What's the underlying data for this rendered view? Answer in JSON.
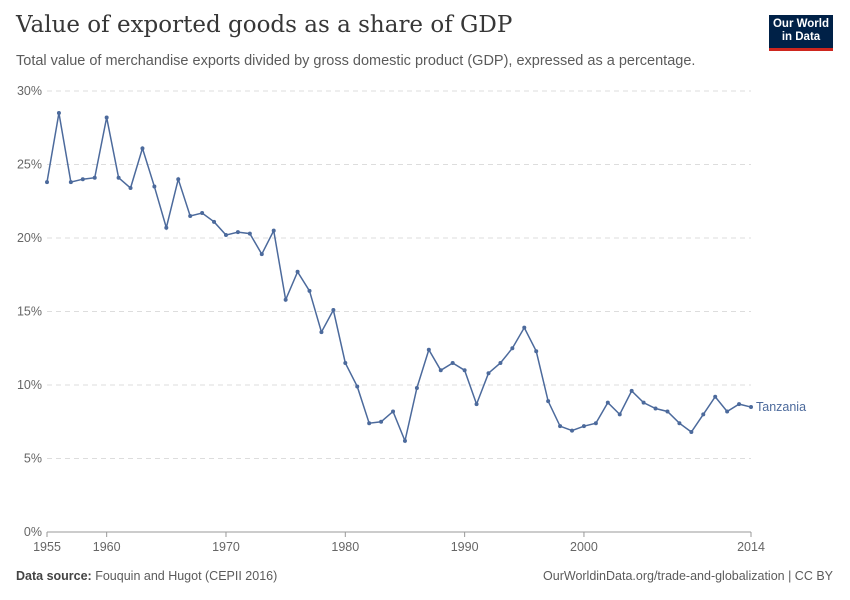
{
  "header": {
    "title": "Value of exported goods as a share of GDP",
    "subtitle": "Total value of merchandise exports divided by gross domestic product (GDP), expressed as a percentage.",
    "logo": "Our World in Data"
  },
  "footer": {
    "source_label": "Data source:",
    "source": "Fouquin and Hugot (CEPII 2016)",
    "url": "OurWorldinData.org/trade-and-globalization | CC BY"
  },
  "chart_data": {
    "type": "line",
    "title": "Value of exported goods as a share of GDP",
    "xlabel": "",
    "ylabel": "",
    "xlim": [
      1955,
      2014
    ],
    "ylim": [
      0,
      30
    ],
    "x_ticks": [
      "1955",
      "1960",
      "1970",
      "1980",
      "1990",
      "2000",
      "2014"
    ],
    "y_ticks": [
      "0%",
      "5%",
      "10%",
      "15%",
      "20%",
      "25%",
      "30%"
    ],
    "grid": true,
    "color": "#4c6a9c",
    "series": [
      {
        "name": "Tanzania",
        "x": [
          1955,
          1956,
          1957,
          1958,
          1959,
          1960,
          1961,
          1962,
          1963,
          1964,
          1965,
          1966,
          1967,
          1968,
          1969,
          1970,
          1971,
          1972,
          1973,
          1974,
          1975,
          1976,
          1977,
          1978,
          1979,
          1980,
          1981,
          1982,
          1983,
          1984,
          1985,
          1986,
          1987,
          1988,
          1989,
          1990,
          1991,
          1992,
          1993,
          1994,
          1995,
          1996,
          1997,
          1998,
          1999,
          2000,
          2001,
          2002,
          2003,
          2004,
          2005,
          2006,
          2007,
          2008,
          2009,
          2010,
          2011,
          2012,
          2013,
          2014
        ],
        "values": [
          23.8,
          28.5,
          23.8,
          24.0,
          24.1,
          28.2,
          24.1,
          23.4,
          26.1,
          23.5,
          20.7,
          24.0,
          21.5,
          21.7,
          21.1,
          20.2,
          20.4,
          20.3,
          18.9,
          20.5,
          15.8,
          17.7,
          16.4,
          13.6,
          15.1,
          11.5,
          9.9,
          7.4,
          7.5,
          8.2,
          6.2,
          9.8,
          12.4,
          11.0,
          11.5,
          11.0,
          8.7,
          10.8,
          11.5,
          12.5,
          13.9,
          12.3,
          8.9,
          7.2,
          6.9,
          7.2,
          7.4,
          8.8,
          8.0,
          9.6,
          8.8,
          8.4,
          8.2,
          7.4,
          6.8,
          8.0,
          9.2,
          8.2,
          8.7,
          8.5
        ]
      }
    ]
  }
}
